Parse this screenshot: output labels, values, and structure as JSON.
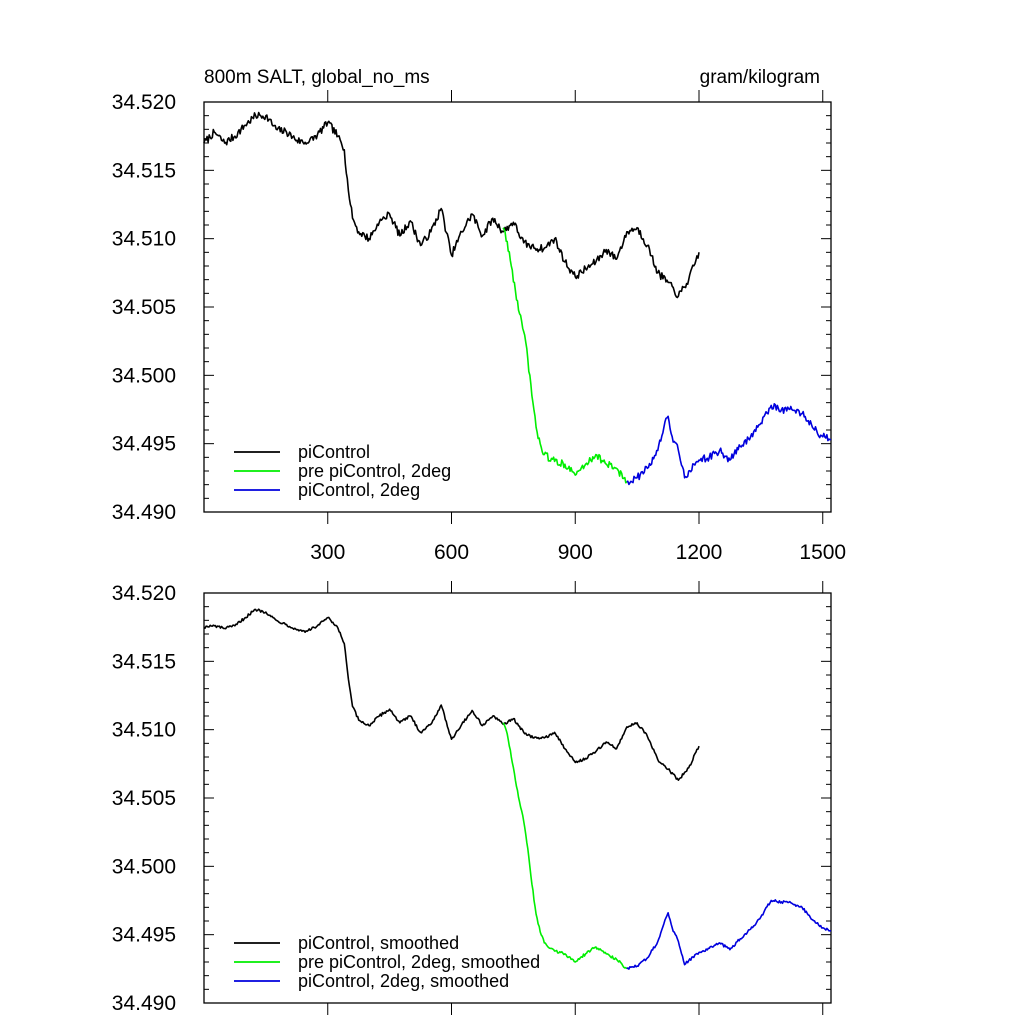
{
  "header": {
    "title_left": "800m SALT, global_no_ms",
    "title_right": "gram/kilogram"
  },
  "colors": {
    "piControl": "#000000",
    "pre_piControl_2deg": "#00ee00",
    "piControl_2deg": "#0000dd"
  },
  "chart_data": [
    {
      "type": "line",
      "title": "800m SALT, global_no_ms",
      "ylabel": "gram/kilogram",
      "xlabel": "",
      "xlim": [
        0,
        1520
      ],
      "ylim": [
        34.49,
        34.52
      ],
      "xticks": [
        300,
        600,
        900,
        1200,
        1500
      ],
      "xtick_labels": [
        "300",
        "600",
        "900",
        "1200",
        "1500"
      ],
      "yticks": [
        34.49,
        34.495,
        34.5,
        34.505,
        34.51,
        34.515,
        34.52
      ],
      "ytick_labels": [
        "34.490",
        "34.495",
        "34.500",
        "34.505",
        "34.510",
        "34.515",
        "34.520"
      ],
      "grid": false,
      "legend_position": "bottom-left",
      "series": [
        {
          "name": "piControl",
          "color": "#000000",
          "x": [
            0,
            25,
            50,
            75,
            100,
            125,
            150,
            175,
            200,
            225,
            250,
            275,
            300,
            325,
            340,
            350,
            360,
            375,
            400,
            425,
            450,
            475,
            500,
            525,
            550,
            575,
            600,
            625,
            650,
            675,
            700,
            725,
            750,
            775,
            800,
            825,
            850,
            875,
            900,
            925,
            950,
            975,
            1000,
            1025,
            1050,
            1075,
            1100,
            1125,
            1150,
            1175,
            1200
          ],
          "y": [
            34.517,
            34.5178,
            34.517,
            34.5175,
            34.5183,
            34.519,
            34.519,
            34.518,
            34.5178,
            34.5172,
            34.517,
            34.5176,
            34.5185,
            34.5175,
            34.5165,
            34.5135,
            34.5115,
            34.5105,
            34.51,
            34.5112,
            34.5118,
            34.5102,
            34.5113,
            34.5095,
            34.5105,
            34.5122,
            34.5088,
            34.5105,
            34.5118,
            34.5102,
            34.5115,
            34.5105,
            34.5112,
            34.5097,
            34.5093,
            34.5093,
            34.51,
            34.5083,
            34.5072,
            34.5078,
            34.5083,
            34.5092,
            34.5085,
            34.5105,
            34.5108,
            34.5095,
            34.5075,
            34.5068,
            34.5058,
            34.507,
            34.509
          ]
        },
        {
          "name": "pre piControl, 2deg",
          "color": "#00ee00",
          "x": [
            725,
            735,
            745,
            755,
            765,
            775,
            785,
            795,
            805,
            815,
            825,
            850,
            875,
            900,
            925,
            950,
            975,
            1000,
            1025
          ],
          "y": [
            34.5108,
            34.5098,
            34.508,
            34.5062,
            34.5045,
            34.5032,
            34.5012,
            34.4985,
            34.4962,
            34.495,
            34.4942,
            34.4937,
            34.4935,
            34.4927,
            34.4935,
            34.4942,
            34.4935,
            34.4932,
            34.4922
          ]
        },
        {
          "name": "piControl, 2deg",
          "color": "#0000dd",
          "x": [
            1025,
            1050,
            1075,
            1100,
            1115,
            1125,
            1135,
            1150,
            1165,
            1175,
            1200,
            1225,
            1250,
            1275,
            1300,
            1325,
            1350,
            1375,
            1400,
            1425,
            1450,
            1475,
            1500,
            1520
          ],
          "y": [
            34.4922,
            34.4925,
            34.4932,
            34.4945,
            34.4962,
            34.497,
            34.4955,
            34.4945,
            34.4925,
            34.493,
            34.4938,
            34.494,
            34.4945,
            34.4938,
            34.4948,
            34.4955,
            34.4965,
            34.4978,
            34.4975,
            34.4975,
            34.4972,
            34.4962,
            34.4955,
            34.4953
          ]
        }
      ]
    },
    {
      "type": "line",
      "title": "",
      "ylabel": "",
      "xlabel": "",
      "xlim": [
        0,
        1520
      ],
      "ylim": [
        34.49,
        34.52
      ],
      "xticks": [
        300,
        600,
        900,
        1200,
        1500
      ],
      "yticks": [
        34.49,
        34.495,
        34.5,
        34.505,
        34.51,
        34.515,
        34.52
      ],
      "ytick_labels": [
        "34.490",
        "34.495",
        "34.500",
        "34.505",
        "34.510",
        "34.515",
        "34.520"
      ],
      "grid": false,
      "legend_position": "bottom-left",
      "series": [
        {
          "name": "piControl, smoothed",
          "color": "#000000",
          "x": [
            0,
            25,
            50,
            75,
            100,
            125,
            150,
            175,
            200,
            225,
            250,
            275,
            300,
            325,
            340,
            350,
            360,
            375,
            400,
            425,
            450,
            475,
            500,
            525,
            550,
            575,
            600,
            625,
            650,
            675,
            700,
            725,
            750,
            775,
            800,
            825,
            850,
            875,
            900,
            925,
            950,
            975,
            1000,
            1025,
            1050,
            1075,
            1100,
            1125,
            1150,
            1175,
            1200
          ],
          "y": [
            34.5175,
            34.5176,
            34.5174,
            34.5176,
            34.5182,
            34.5188,
            34.5186,
            34.518,
            34.5177,
            34.5173,
            34.5172,
            34.5176,
            34.5182,
            34.5174,
            34.5163,
            34.5137,
            34.5117,
            34.5107,
            34.5103,
            34.511,
            34.5115,
            34.5105,
            34.511,
            34.5098,
            34.5104,
            34.5118,
            34.5093,
            34.5104,
            34.5114,
            34.5103,
            34.511,
            34.5104,
            34.5108,
            34.5098,
            34.5094,
            34.5094,
            34.5098,
            34.5086,
            34.5076,
            34.5079,
            34.5084,
            34.5091,
            34.5086,
            34.5102,
            34.5105,
            34.5095,
            34.5078,
            34.5071,
            34.5063,
            34.5072,
            34.5088
          ]
        },
        {
          "name": "pre piControl, 2deg, smoothed",
          "color": "#00ee00",
          "x": [
            725,
            735,
            745,
            755,
            765,
            775,
            785,
            795,
            805,
            815,
            825,
            850,
            875,
            900,
            925,
            950,
            975,
            1000,
            1025
          ],
          "y": [
            34.5105,
            34.5097,
            34.508,
            34.5063,
            34.5047,
            34.5033,
            34.5013,
            34.4987,
            34.4965,
            34.4952,
            34.4944,
            34.4938,
            34.4936,
            34.493,
            34.4936,
            34.4941,
            34.4936,
            34.4932,
            34.4925
          ]
        },
        {
          "name": "piControl, 2deg, smoothed",
          "color": "#0000dd",
          "x": [
            1025,
            1050,
            1075,
            1100,
            1115,
            1125,
            1135,
            1150,
            1165,
            1175,
            1200,
            1225,
            1250,
            1275,
            1300,
            1325,
            1350,
            1375,
            1400,
            1425,
            1450,
            1475,
            1500,
            1520
          ],
          "y": [
            34.4925,
            34.4927,
            34.4933,
            34.4945,
            34.4958,
            34.4966,
            34.4955,
            34.4945,
            34.4928,
            34.4931,
            34.4937,
            34.494,
            34.4944,
            34.4939,
            34.4947,
            34.4954,
            34.4963,
            34.4975,
            34.4974,
            34.4973,
            34.497,
            34.4961,
            34.4955,
            34.4953
          ]
        }
      ]
    }
  ]
}
